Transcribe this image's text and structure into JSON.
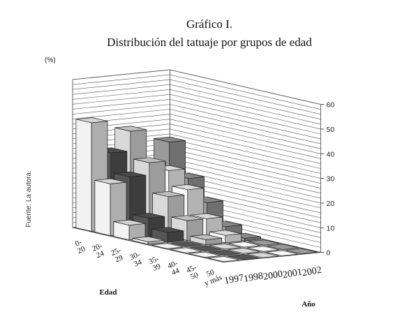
{
  "chart_data": {
    "type": "bar",
    "variant": "3d-depth",
    "title": "Gráfico I.",
    "subtitle": "Distribución del tatuaje por grupos de edad",
    "ylabel": "(%)",
    "xlabel": "Edad",
    "zlabel": "Año",
    "source": "Fuente: La autora.",
    "ylim": [
      0,
      60
    ],
    "yticks": [
      0,
      10,
      20,
      30,
      40,
      50,
      60
    ],
    "grid": true,
    "categories": [
      "0-20",
      "20-24",
      "25-29",
      "30-34",
      "35-39",
      "40-44",
      "45-50",
      "50 y más"
    ],
    "category_labels": [
      [
        "0-",
        "20"
      ],
      [
        "20-",
        "24"
      ],
      [
        "25-",
        "29"
      ],
      [
        "30-",
        "34"
      ],
      [
        "35-",
        "39"
      ],
      [
        "40-",
        "44"
      ],
      [
        "45-",
        "50"
      ],
      [
        "50",
        "y más"
      ]
    ],
    "series": [
      {
        "name": "1997",
        "color": "#f2f2f2",
        "values": [
          44,
          21,
          6,
          1,
          0,
          0,
          0,
          0
        ]
      },
      {
        "name": "1998",
        "color": "#555555",
        "values": [
          31,
          23,
          8,
          4,
          0,
          0,
          0,
          0
        ]
      },
      {
        "name": "2000",
        "color": "#d9d9d9",
        "values": [
          39,
          28,
          16,
          8,
          2,
          0,
          0,
          0
        ]
      },
      {
        "name": "2001",
        "color": "#f8f8f8",
        "values": [
          25,
          24,
          18,
          8,
          3,
          0,
          0,
          0
        ]
      },
      {
        "name": "2002",
        "color": "#9a9a9a",
        "values": [
          33,
          20,
          12,
          4,
          1,
          0,
          0,
          0
        ]
      }
    ]
  }
}
